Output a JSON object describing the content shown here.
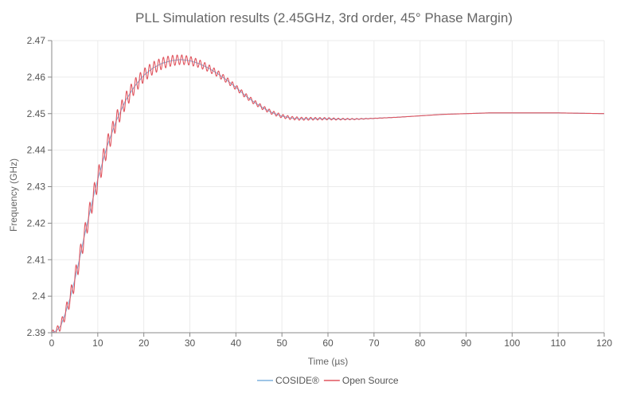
{
  "chart_data": {
    "type": "line",
    "title": "PLL Simulation results (2.45GHz, 3rd order, 45° Phase Margin)",
    "xlabel": "Time (µs)",
    "ylabel": "Frequency (GHz)",
    "xlim": [
      0,
      120
    ],
    "ylim": [
      2.39,
      2.47
    ],
    "xticks": [
      "0",
      "10",
      "20",
      "30",
      "40",
      "50",
      "60",
      "70",
      "80",
      "90",
      "100",
      "110",
      "120"
    ],
    "yticks": [
      "2.39",
      "2.4",
      "2.41",
      "2.42",
      "2.43",
      "2.44",
      "2.45",
      "2.46",
      "2.47"
    ],
    "grid": true,
    "legend_position": "bottom",
    "series": [
      {
        "name": "COSIDE®",
        "color": "#7fb2dd",
        "x": [
          0,
          1,
          2,
          3,
          4,
          5,
          6,
          7,
          8,
          9,
          10,
          12,
          14,
          16,
          18,
          20,
          22,
          24,
          26,
          28,
          30,
          32,
          34,
          36,
          38,
          40,
          42,
          44,
          46,
          48,
          50,
          52,
          54,
          56,
          58,
          60,
          62,
          64,
          66,
          68,
          70,
          75,
          80,
          85,
          90,
          95,
          100,
          105,
          110,
          115,
          120
        ],
        "y": [
          2.39,
          2.3905,
          2.392,
          2.3955,
          2.3995,
          2.4045,
          2.41,
          2.416,
          2.4215,
          2.427,
          2.432,
          2.441,
          2.448,
          2.4535,
          2.4575,
          2.4605,
          2.4625,
          2.4638,
          2.4645,
          2.4648,
          2.4645,
          2.4637,
          2.4625,
          2.461,
          2.4592,
          2.4572,
          2.455,
          2.4531,
          2.4515,
          2.4502,
          2.4493,
          2.4488,
          2.4486,
          2.4486,
          2.4486,
          2.4486,
          2.4485,
          2.4485,
          2.4485,
          2.4486,
          2.4487,
          2.449,
          2.4494,
          2.4498,
          2.45,
          2.4502,
          2.4502,
          2.4502,
          2.4502,
          2.4501,
          2.45
        ]
      },
      {
        "name": "Open Source",
        "color": "#e0555f",
        "x": [
          0,
          1,
          2,
          3,
          4,
          5,
          6,
          7,
          8,
          9,
          10,
          12,
          14,
          16,
          18,
          20,
          22,
          24,
          26,
          28,
          30,
          32,
          34,
          36,
          38,
          40,
          42,
          44,
          46,
          48,
          50,
          52,
          54,
          56,
          58,
          60,
          62,
          64,
          66,
          68,
          70,
          75,
          80,
          85,
          90,
          95,
          100,
          105,
          110,
          115,
          120
        ],
        "y": [
          2.39,
          2.3905,
          2.392,
          2.3955,
          2.3995,
          2.4045,
          2.41,
          2.416,
          2.4215,
          2.427,
          2.432,
          2.441,
          2.448,
          2.4535,
          2.4575,
          2.4605,
          2.4625,
          2.4638,
          2.4645,
          2.4648,
          2.4645,
          2.4637,
          2.4625,
          2.461,
          2.4592,
          2.4572,
          2.455,
          2.4531,
          2.4515,
          2.4502,
          2.4493,
          2.4488,
          2.4486,
          2.4486,
          2.4486,
          2.4486,
          2.4485,
          2.4485,
          2.4485,
          2.4486,
          2.4487,
          2.449,
          2.4494,
          2.4498,
          2.45,
          2.4502,
          2.4502,
          2.4502,
          2.4502,
          2.4501,
          2.45
        ],
        "ripple": {
          "period": 1.0,
          "points": [
            [
              0,
              0.0005
            ],
            [
              5,
              0.0025
            ],
            [
              10,
              0.0028
            ],
            [
              20,
              0.0018
            ],
            [
              30,
              0.0012
            ],
            [
              40,
              0.0007
            ],
            [
              50,
              0.0005
            ],
            [
              60,
              0.0003
            ],
            [
              70,
              5e-05
            ],
            [
              80,
              0.0
            ]
          ]
        }
      }
    ]
  }
}
